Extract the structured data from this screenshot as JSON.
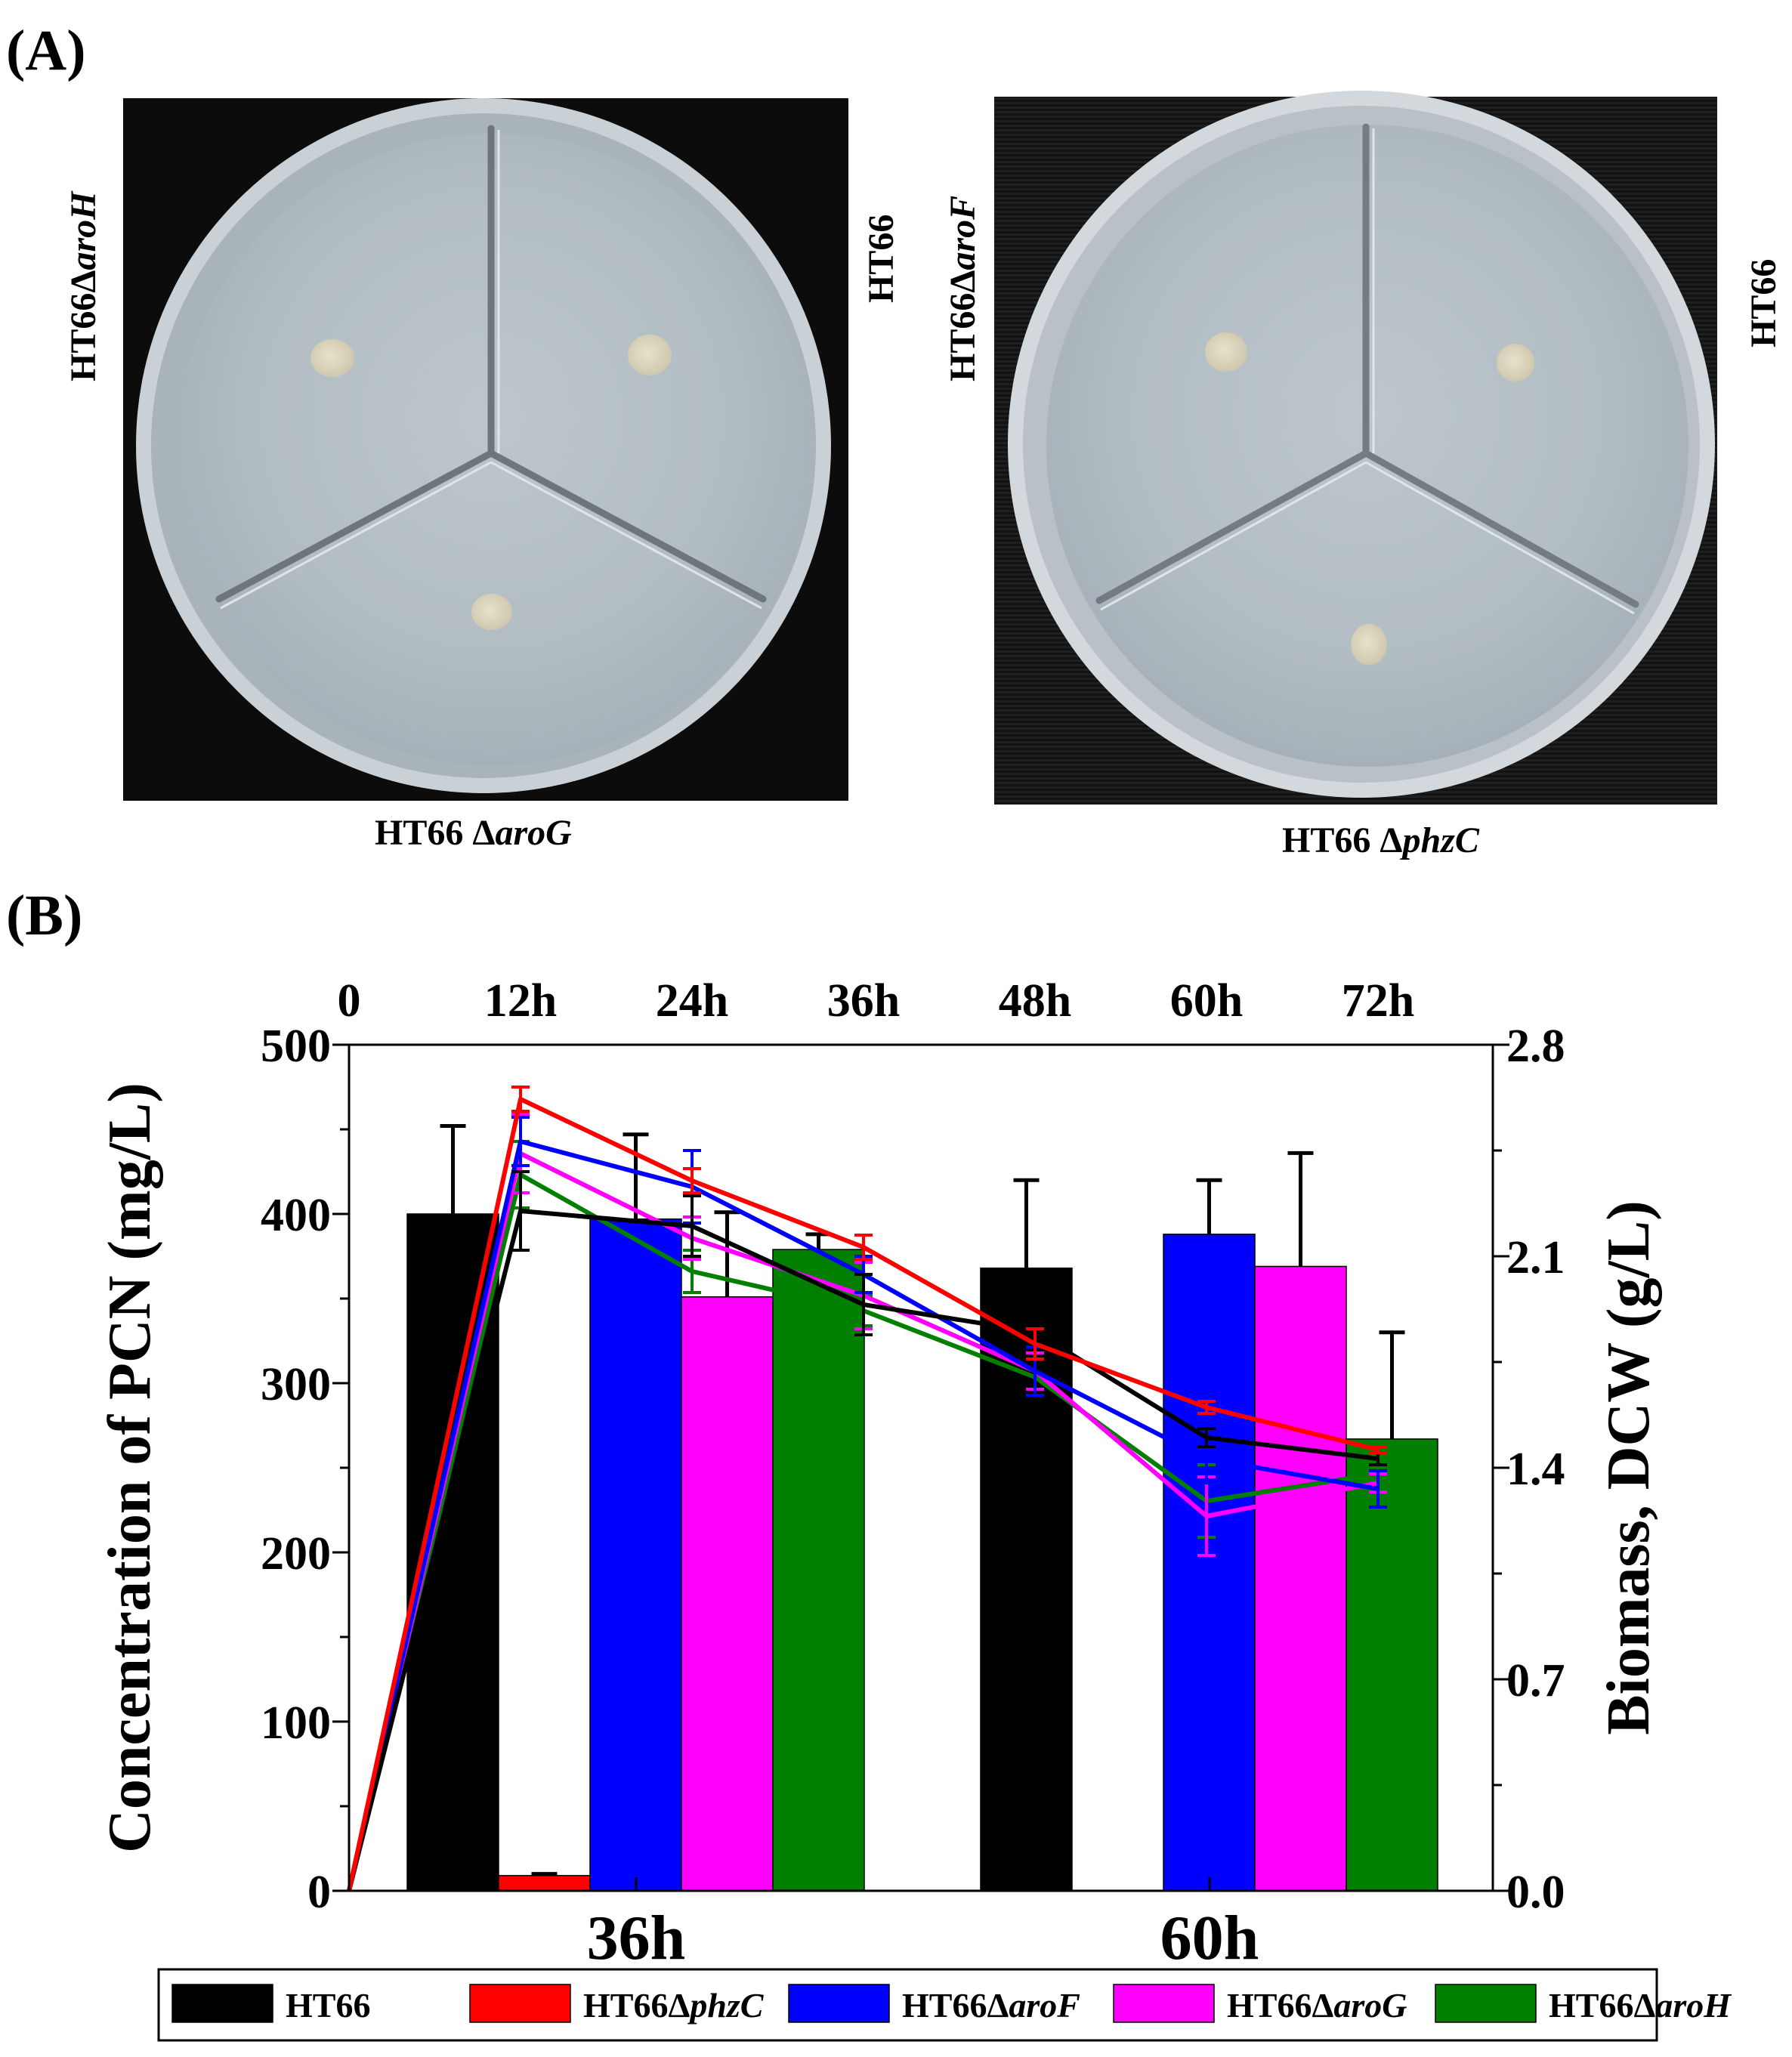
{
  "panel_a": {
    "label": "(A)",
    "left_plate": {
      "label_left": "HT66ΔaroH",
      "label_left_parts": [
        "HT66Δ",
        "aroH"
      ],
      "label_right": "HT66",
      "label_bottom": "HT66 ΔaroG",
      "label_bottom_parts": [
        "HT66 Δ",
        "aroG"
      ]
    },
    "right_plate": {
      "label_left": "HT66ΔaroF",
      "label_left_parts": [
        "HT66Δ",
        "aroF"
      ],
      "label_right": "HT66",
      "label_bottom": "HT66 ΔphzC",
      "label_bottom_parts": [
        "HT66 Δ",
        "phzC"
      ]
    }
  },
  "panel_b": {
    "label": "(B)"
  },
  "chart_data": {
    "type": "bar",
    "title": "",
    "top_axis": {
      "ticks": [
        "0",
        "12h",
        "24h",
        "36h",
        "48h",
        "60h",
        "72h"
      ],
      "values": [
        0,
        12,
        24,
        36,
        48,
        60,
        72
      ]
    },
    "ylabel": "Concentration of PCN (mg/L)",
    "ylim": [
      0,
      500
    ],
    "yticks": [
      0,
      100,
      200,
      300,
      400,
      500
    ],
    "y2label": "Biomass, DCW (g/L)",
    "y2lim": [
      0,
      2.8
    ],
    "y2ticks": [
      "0.0",
      "0.7",
      "1.4",
      "2.1",
      "2.8"
    ],
    "categories": [
      "36h",
      "60h"
    ],
    "bar_series": [
      {
        "name": "HT66",
        "color": "#000000",
        "values": [
          400,
          368
        ],
        "errors": [
          52,
          52
        ]
      },
      {
        "name": "HT66ΔphzC",
        "color": "#ff0000",
        "values": [
          9,
          0
        ],
        "errors": [
          1,
          0
        ]
      },
      {
        "name": "HT66ΔaroF",
        "color": "#0000ff",
        "values": [
          397,
          388
        ],
        "errors": [
          50,
          32
        ]
      },
      {
        "name": "HT66ΔaroG",
        "color": "#ff00ff",
        "values": [
          351,
          369
        ],
        "errors": [
          50,
          67
        ]
      },
      {
        "name": "HT66ΔaroH",
        "color": "#007f00",
        "values": [
          379,
          267
        ],
        "errors": [
          9,
          63
        ]
      }
    ],
    "line_series_dcw": {
      "x": [
        0,
        12,
        24,
        36,
        48,
        60,
        72
      ],
      "series": [
        {
          "name": "HT66",
          "color": "#000000",
          "values": [
            0,
            2.25,
            2.2,
            1.94,
            1.85,
            1.5,
            1.43
          ],
          "errors": [
            0,
            0.13,
            0.1,
            0.1,
            0.04,
            0.03,
            0.02
          ]
        },
        {
          "name": "HT66ΔphzC",
          "color": "#ff0000",
          "values": [
            0,
            2.62,
            2.35,
            2.13,
            1.81,
            1.6,
            1.46
          ],
          "errors": [
            0,
            0.04,
            0.04,
            0.04,
            0.05,
            0.02,
            0.01
          ]
        },
        {
          "name": "HT66ΔaroF",
          "color": "#0000ff",
          "values": [
            0,
            2.48,
            2.33,
            2.04,
            1.72,
            1.43,
            1.33
          ],
          "errors": [
            0,
            0.08,
            0.12,
            0.06,
            0.08,
            0.08,
            0.06
          ]
        },
        {
          "name": "HT66ΔaroG",
          "color": "#ff00ff",
          "values": [
            0,
            2.44,
            2.16,
            1.97,
            1.72,
            1.24,
            1.35
          ],
          "errors": [
            0,
            0.13,
            0.07,
            0.11,
            0.06,
            0.13,
            0.03
          ]
        },
        {
          "name": "HT66ΔaroH",
          "color": "#007f00",
          "values": [
            0,
            2.37,
            2.05,
            1.92,
            1.7,
            1.29,
            1.38
          ],
          "errors": [
            0,
            0.11,
            0.07,
            0.05,
            0.06,
            0.12,
            0.02
          ]
        }
      ]
    },
    "legend": {
      "placement": "bottom",
      "entries": [
        {
          "name": "HT66",
          "parts": [
            "HT66",
            ""
          ],
          "color": "#000000"
        },
        {
          "name": "HT66ΔphzC",
          "parts": [
            "HT66Δ",
            "phzC"
          ],
          "color": "#ff0000"
        },
        {
          "name": "HT66ΔaroF",
          "parts": [
            "HT66Δ",
            "aroF"
          ],
          "color": "#0000ff"
        },
        {
          "name": "HT66ΔaroG",
          "parts": [
            "HT66Δ",
            "aroG"
          ],
          "color": "#ff00ff"
        },
        {
          "name": "HT66ΔaroH",
          "parts": [
            "HT66Δ",
            "aroH"
          ],
          "color": "#007f00"
        }
      ]
    }
  }
}
